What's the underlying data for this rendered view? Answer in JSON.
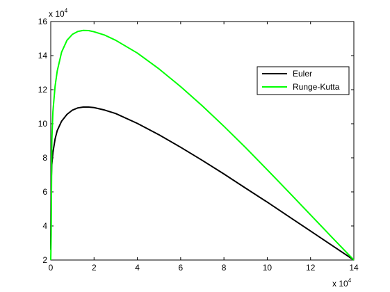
{
  "chart_data": {
    "type": "line",
    "x_exponent_label": {
      "base": "x 10",
      "exp": "4"
    },
    "y_exponent_label": {
      "base": "x 10",
      "exp": "4"
    },
    "xlim": [
      0,
      14
    ],
    "ylim": [
      2,
      16
    ],
    "xticks": [
      0,
      2,
      4,
      6,
      8,
      10,
      12,
      14
    ],
    "yticks": [
      2,
      4,
      6,
      8,
      10,
      12,
      14,
      16
    ],
    "xtick_labels": [
      "0",
      "2",
      "4",
      "6",
      "8",
      "10",
      "12",
      "14"
    ],
    "ytick_labels": [
      "2",
      "4",
      "6",
      "8",
      "10",
      "12",
      "14",
      "16"
    ],
    "grid": false,
    "legend_position": "top-right",
    "series": [
      {
        "name": "Euler",
        "color": "#000000",
        "x": [
          0,
          0.02,
          0.05,
          0.1,
          0.2,
          0.3,
          0.5,
          0.75,
          1.0,
          1.25,
          1.5,
          1.75,
          2.0,
          2.5,
          3,
          4,
          5,
          6,
          7,
          8,
          9,
          10,
          11,
          12,
          13,
          14
        ],
        "y": [
          2.6,
          6.5,
          7.6,
          8.3,
          9.1,
          9.6,
          10.15,
          10.55,
          10.8,
          10.93,
          10.98,
          10.98,
          10.95,
          10.8,
          10.6,
          10.02,
          9.35,
          8.62,
          7.85,
          7.05,
          6.22,
          5.4,
          4.55,
          3.7,
          2.85,
          2.0
        ]
      },
      {
        "name": "Runge-Kutta",
        "color": "#00ff00",
        "x": [
          0,
          0.02,
          0.05,
          0.1,
          0.2,
          0.3,
          0.5,
          0.75,
          1.0,
          1.25,
          1.5,
          1.75,
          2.0,
          2.5,
          3,
          4,
          5,
          6,
          7,
          8,
          9,
          10,
          11,
          12,
          13,
          14
        ],
        "y": [
          2.0,
          3.5,
          9.0,
          10.7,
          12.2,
          13.1,
          14.2,
          14.9,
          15.25,
          15.42,
          15.48,
          15.47,
          15.4,
          15.2,
          14.9,
          14.15,
          13.22,
          12.18,
          11.05,
          9.85,
          8.6,
          7.3,
          5.98,
          4.65,
          3.32,
          2.0
        ]
      }
    ]
  }
}
